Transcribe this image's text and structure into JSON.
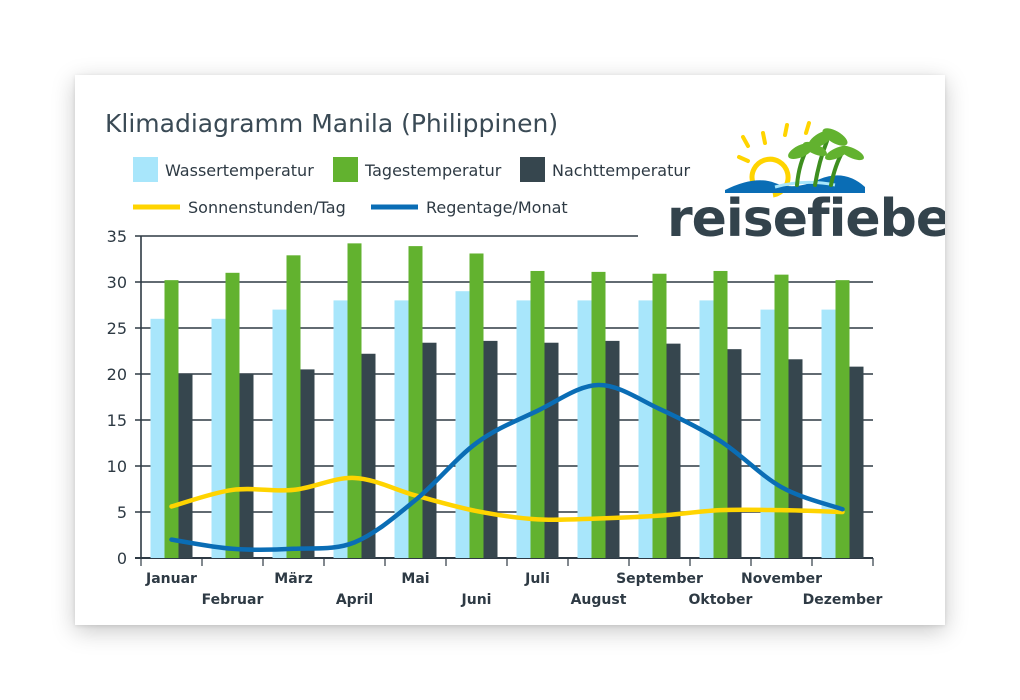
{
  "colors": {
    "wasser": "#a8e6fb",
    "tages": "#62b22f",
    "nacht": "#36464e",
    "sonne": "#ffd400",
    "regen": "#0a6db5",
    "grid": "#2e3a44",
    "text": "#3a4a55"
  },
  "logo": {
    "text": "reisefieber",
    "icon": "sun-and-palm-trees-icon"
  },
  "chart_data": {
    "type": "bar",
    "title": "Klimadiagramm Manila (Philippinen)",
    "categories": [
      "Januar",
      "Februar",
      "März",
      "April",
      "Mai",
      "Juni",
      "Juli",
      "August",
      "September",
      "Oktober",
      "November",
      "Dezember"
    ],
    "ylim": [
      0,
      35
    ],
    "yticks": [
      0,
      5,
      10,
      15,
      20,
      25,
      30,
      35
    ],
    "grid": true,
    "legend_position": "top-left",
    "series": [
      {
        "name": "Wassertemperatur",
        "kind": "bar",
        "color_key": "wasser",
        "values": [
          26,
          26,
          27,
          28,
          28,
          29,
          28,
          28,
          28,
          28,
          27,
          27
        ]
      },
      {
        "name": "Tagestemperatur",
        "kind": "bar",
        "color_key": "tages",
        "values": [
          30.2,
          31,
          32.9,
          34.2,
          33.9,
          33.1,
          31.2,
          31.1,
          30.9,
          31.2,
          30.8,
          30.2
        ]
      },
      {
        "name": "Nachttemperatur",
        "kind": "bar",
        "color_key": "nacht",
        "values": [
          20,
          20,
          20.5,
          22.2,
          23.4,
          23.6,
          23.4,
          23.6,
          23.3,
          22.7,
          21.6,
          20.8
        ]
      },
      {
        "name": "Sonnenstunden/Tag",
        "kind": "line",
        "color_key": "sonne",
        "values": [
          5.6,
          7.4,
          7.4,
          8.7,
          6.8,
          5.1,
          4.2,
          4.3,
          4.6,
          5.2,
          5.2,
          5.0
        ]
      },
      {
        "name": "Regentage/Monat",
        "kind": "line",
        "color_key": "regen",
        "values": [
          2.0,
          1.0,
          1.0,
          1.7,
          6.3,
          12.5,
          16.0,
          18.8,
          16.2,
          12.7,
          7.7,
          5.3
        ]
      }
    ]
  }
}
